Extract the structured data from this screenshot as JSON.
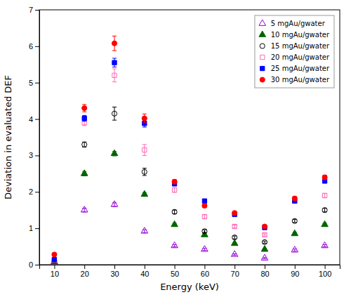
{
  "chart_data": {
    "type": "scatter",
    "xlabel": "Energy (keV)",
    "ylabel": "Deviation in evaluated DEF",
    "x": [
      10,
      20,
      30,
      40,
      50,
      60,
      70,
      80,
      90,
      100
    ],
    "series": [
      {
        "name": "5 mgAu/gwater",
        "color": "#9400D3",
        "marker": "triangle-open",
        "values": [
          0.05,
          1.5,
          1.65,
          0.92,
          0.52,
          0.42,
          0.28,
          0.18,
          0.4,
          0.52
        ],
        "yerr": [
          0.02,
          0.05,
          0.05,
          0.04,
          0.03,
          0.03,
          0.02,
          0.02,
          0.03,
          0.03
        ]
      },
      {
        "name": "10 mgAu/gwater",
        "color": "#006400",
        "marker": "triangle",
        "values": [
          0.08,
          2.5,
          3.05,
          1.93,
          1.1,
          0.82,
          0.58,
          0.42,
          0.85,
          1.1
        ],
        "yerr": [
          0.03,
          0.06,
          0.06,
          0.05,
          0.04,
          0.04,
          0.03,
          0.03,
          0.04,
          0.04
        ]
      },
      {
        "name": "15 mgAu/gwater",
        "color": "#000000",
        "marker": "circle-open",
        "values": [
          0.1,
          3.3,
          4.15,
          2.55,
          1.45,
          0.92,
          0.75,
          0.62,
          1.2,
          1.5
        ],
        "yerr": [
          0.03,
          0.07,
          0.18,
          0.1,
          0.05,
          0.04,
          0.04,
          0.03,
          0.04,
          0.05
        ]
      },
      {
        "name": "20 mgAu/gwater",
        "color": "#FF69B4",
        "marker": "square-open",
        "values": [
          0.12,
          3.9,
          5.2,
          3.15,
          2.05,
          1.32,
          1.05,
          0.82,
          1.75,
          1.9
        ],
        "yerr": [
          0.03,
          0.08,
          0.18,
          0.15,
          0.06,
          0.05,
          0.04,
          0.03,
          0.05,
          0.06
        ]
      },
      {
        "name": "25 mgAu/gwater",
        "color": "#0000FF",
        "marker": "square",
        "values": [
          0.14,
          4.02,
          5.55,
          3.88,
          2.22,
          1.75,
          1.38,
          1.02,
          1.75,
          2.3
        ],
        "yerr": [
          0.03,
          0.08,
          0.12,
          0.1,
          0.05,
          0.05,
          0.04,
          0.03,
          0.05,
          0.06
        ]
      },
      {
        "name": "30 mgAu/gwater",
        "color": "#FF0000",
        "marker": "circle",
        "values": [
          0.28,
          4.3,
          6.08,
          4.02,
          2.28,
          1.62,
          1.42,
          1.05,
          1.82,
          2.4
        ],
        "yerr": [
          0.04,
          0.1,
          0.2,
          0.12,
          0.06,
          0.05,
          0.04,
          0.03,
          0.05,
          0.06
        ]
      }
    ],
    "xlim": [
      5,
      105
    ],
    "ylim": [
      0,
      7
    ],
    "xticks": [
      10,
      20,
      30,
      40,
      50,
      60,
      70,
      80,
      90,
      100
    ],
    "yticks": [
      0,
      1,
      2,
      3,
      4,
      5,
      6,
      7
    ],
    "grid": false,
    "legend": "upper right"
  }
}
